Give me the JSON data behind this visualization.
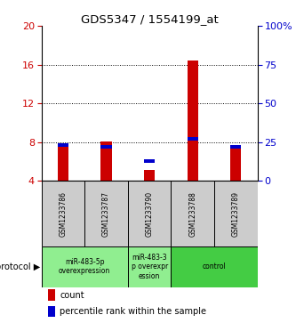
{
  "title": "GDS5347 / 1554199_at",
  "samples": [
    "GSM1233786",
    "GSM1233787",
    "GSM1233790",
    "GSM1233788",
    "GSM1233789"
  ],
  "count_values": [
    7.5,
    8.1,
    5.1,
    16.4,
    7.5
  ],
  "percentile_values": [
    23,
    22,
    13,
    27,
    22
  ],
  "ylim_left": [
    4,
    20
  ],
  "ylim_right": [
    0,
    100
  ],
  "yticks_left": [
    4,
    8,
    12,
    16,
    20
  ],
  "yticks_right": [
    0,
    25,
    50,
    75,
    100
  ],
  "ytick_labels_left": [
    "4",
    "8",
    "12",
    "16",
    "20"
  ],
  "ytick_labels_right": [
    "0",
    "25",
    "50",
    "75",
    "100%"
  ],
  "color_count": "#cc0000",
  "color_percentile": "#0000cc",
  "bar_width": 0.25,
  "sample_box_color": "#cccccc",
  "legend_count_label": "count",
  "legend_percentile_label": "percentile rank within the sample",
  "protocol_label": "protocol",
  "background_color": "#ffffff",
  "proto_light_color": "#90ee90",
  "proto_dark_color": "#44cc44",
  "protocols": [
    {
      "samples": [
        0,
        1
      ],
      "label": "miR-483-5p\noverexpression",
      "color": "#90ee90"
    },
    {
      "samples": [
        2
      ],
      "label": "miR-483-3\np overexpr\nession",
      "color": "#90ee90"
    },
    {
      "samples": [
        3,
        4
      ],
      "label": "control",
      "color": "#44cc44"
    }
  ]
}
